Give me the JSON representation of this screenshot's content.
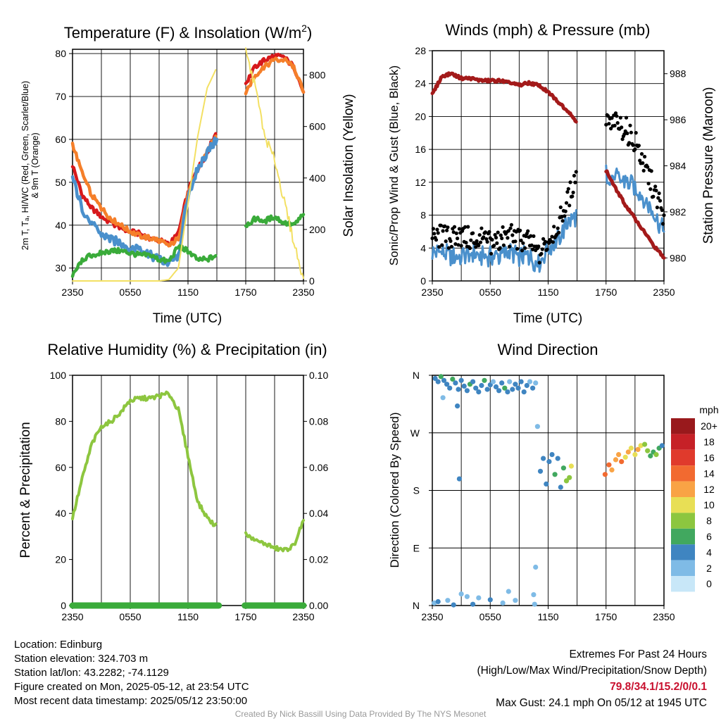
{
  "panels": {
    "temp": {
      "title": "Temperature (F) & Insolation (W/m",
      "title_sup": "2",
      "title_end": ")",
      "ylabel_lines": [
        "2m T, Tₐ, HI/WC (Red, Green, Scarlet/Blue)",
        "& 9m T (Orange)"
      ],
      "y2label": "Solar Insolation (Yellow)",
      "xlabel": "Time (UTC)"
    },
    "wind": {
      "title": "Winds (mph) & Pressure (mb)",
      "ylabel": "Sonic/Prop Wind & Gust (Blue, Black)",
      "y2label": "Station Pressure (Maroon)",
      "xlabel": "Time (UTC)"
    },
    "rh": {
      "title": "Relative Humidity (%) & Precipitation (in)",
      "ylabel": "Percent & Precipitation"
    },
    "dir": {
      "title": "Wind Direction",
      "ylabel": "Direction (Colored By Speed)",
      "legend_title": "mph"
    }
  },
  "footer": {
    "location": "Location: Edinburg",
    "elevation": "Station elevation: 324.703 m",
    "latlon": "Station lat/lon: 43.2282; -74.1129",
    "created": "Figure created on Mon, 2025-05-12, at 23:54 UTC",
    "recent": "Most recent data timestamp: 2025/05/12 23:50:00",
    "extremes_title": "Extremes For Past 24 Hours",
    "extremes_sub": "(High/Low/Max Wind/Precipitation/Snow Depth)",
    "extremes_values": "79.8/34.1/15.2/0/0.1",
    "max_gust": "Max Gust: 24.1 mph On 05/12 at 1945 UTC",
    "credit": "Created By Nick Bassill Using Data Provided By The NYS Mesonet"
  },
  "chart_data": [
    {
      "type": "line",
      "title": "Temperature (F) & Insolation (W/m2)",
      "xlabel": "Time (UTC)",
      "ylabel": "2m T, Td, HI/WC (Red, Green, Scarlet/Blue) & 9m T (Orange)",
      "y2label": "Solar Insolation (Yellow)",
      "x_ticks": [
        "2350",
        "0550",
        "1150",
        "1750",
        "2350"
      ],
      "xlim": [
        0,
        24
      ],
      "ylim": [
        27,
        81
      ],
      "y_ticks": [
        30,
        40,
        50,
        60,
        70,
        80
      ],
      "y2lim": [
        0,
        900
      ],
      "y2_ticks": [
        0,
        200,
        400,
        600,
        800
      ],
      "gap_hours": [
        15.2,
        17.9
      ],
      "series": [
        {
          "name": "2m T",
          "color": "#d7191c",
          "axis": "left",
          "x": [
            0,
            1,
            2,
            3,
            4,
            5,
            6,
            7,
            8,
            9,
            10,
            11,
            12,
            13,
            14,
            15,
            18,
            19,
            20,
            21,
            22,
            23,
            24
          ],
          "y": [
            54,
            47,
            44,
            42,
            40.5,
            39.5,
            38.5,
            38,
            37,
            36.5,
            35.5,
            38,
            48,
            53,
            57,
            62,
            73,
            77,
            78.5,
            79.5,
            79,
            77,
            71
          ]
        },
        {
          "name": "9m T",
          "color": "#f57f2a",
          "axis": "left",
          "x": [
            0,
            1,
            2,
            3,
            4,
            5,
            6,
            7,
            8,
            9,
            10,
            11,
            12,
            13,
            14,
            15,
            18,
            19,
            20,
            21,
            22,
            23,
            24
          ],
          "y": [
            59,
            52,
            47,
            44,
            41.5,
            40,
            38.5,
            37.5,
            37,
            36.5,
            35,
            37,
            47,
            53,
            57,
            61,
            71,
            75,
            77,
            78.5,
            78.5,
            77,
            71
          ]
        },
        {
          "name": "HI/WC",
          "color": "#4a90cc",
          "axis": "left",
          "x": [
            0,
            1,
            2,
            3,
            4,
            5,
            6,
            7,
            8,
            9,
            10,
            11,
            12,
            13,
            14,
            15
          ],
          "y": [
            51,
            44,
            40,
            38,
            36.5,
            36,
            34.5,
            35,
            33,
            32,
            31,
            33,
            47,
            53,
            57,
            60
          ]
        },
        {
          "name": "Td",
          "color": "#3aab3a",
          "axis": "left",
          "x": [
            0,
            1,
            2,
            3,
            4,
            5,
            6,
            7,
            8,
            9,
            10,
            11,
            12,
            13,
            14,
            15,
            18,
            19,
            20,
            21,
            22,
            23,
            24
          ],
          "y": [
            28,
            32,
            33,
            33.5,
            34,
            34,
            33.5,
            33,
            33,
            32,
            31.5,
            35,
            34,
            32,
            32,
            33,
            40,
            41.5,
            41,
            42,
            40.5,
            40,
            42.5
          ]
        },
        {
          "name": "Solar Insolation",
          "color": "#f3e063",
          "axis": "right",
          "x": [
            0,
            1,
            2,
            3,
            4,
            5,
            6,
            7,
            8,
            9,
            10,
            11,
            12,
            13,
            14,
            15,
            18,
            19,
            20,
            21,
            22,
            23,
            24
          ],
          "y": [
            0,
            0,
            0,
            0,
            0,
            0,
            0,
            0,
            0,
            0,
            5,
            50,
            300,
            560,
            750,
            830,
            890,
            750,
            560,
            470,
            310,
            150,
            10
          ]
        }
      ]
    },
    {
      "type": "line",
      "title": "Winds (mph) & Pressure (mb)",
      "xlabel": "Time (UTC)",
      "ylabel": "Sonic/Prop Wind & Gust (Blue, Black)",
      "y2label": "Station Pressure (Maroon)",
      "x_ticks": [
        "2350",
        "0550",
        "1150",
        "1750",
        "2350"
      ],
      "xlim": [
        0,
        24
      ],
      "ylim": [
        0,
        28
      ],
      "y_ticks": [
        0,
        4,
        8,
        12,
        16,
        20,
        24,
        28
      ],
      "y2lim": [
        979,
        989
      ],
      "y2_ticks": [
        980,
        982,
        984,
        986,
        988
      ],
      "series": [
        {
          "name": "Wind",
          "color": "#4a90cc",
          "axis": "left",
          "x": [
            0,
            1,
            2,
            3,
            4,
            5,
            6,
            7,
            8,
            9,
            10,
            11,
            12,
            13,
            14,
            15,
            18,
            19,
            20,
            21,
            22,
            23,
            24
          ],
          "y": [
            3.5,
            3.5,
            3,
            3,
            3.5,
            3,
            3,
            3,
            3.5,
            3,
            3,
            2,
            4,
            5,
            7,
            8,
            13,
            12.5,
            12,
            11.5,
            10,
            8,
            6
          ]
        },
        {
          "name": "Gust",
          "color": "#000000",
          "axis": "left",
          "style": "points",
          "x": [
            0,
            1,
            2,
            3,
            4,
            5,
            6,
            7,
            8,
            9,
            10,
            11,
            12,
            13,
            14,
            15,
            18,
            19,
            20,
            21,
            22,
            23,
            24
          ],
          "y": [
            5,
            5.5,
            5,
            5.5,
            5,
            5,
            4.5,
            5,
            5.5,
            5,
            5,
            3,
            5,
            7,
            9.5,
            13.5,
            19,
            19,
            18.5,
            17,
            14,
            11,
            8
          ]
        },
        {
          "name": "Station Pressure",
          "color": "#a31a1a",
          "axis": "right",
          "x": [
            0,
            1,
            2,
            3,
            4,
            5,
            6,
            7,
            8,
            9,
            10,
            11,
            12,
            13,
            14,
            15,
            18,
            19,
            20,
            21,
            22,
            23,
            24
          ],
          "y": [
            987.1,
            987.9,
            988,
            987.8,
            987.8,
            987.7,
            987.7,
            987.7,
            987.6,
            987.5,
            987.6,
            987.5,
            987.2,
            986.8,
            986.4,
            985.9,
            983.8,
            983.0,
            982.3,
            981.7,
            981.1,
            980.5,
            980.0
          ]
        }
      ]
    },
    {
      "type": "line",
      "title": "Relative Humidity (%) & Precipitation (in)",
      "ylabel": "Percent & Precipitation",
      "x_ticks": [
        "2350",
        "0550",
        "1150",
        "1750",
        "2350"
      ],
      "xlim": [
        0,
        24
      ],
      "ylim": [
        0,
        100
      ],
      "y_ticks": [
        0,
        20,
        40,
        60,
        80,
        100
      ],
      "y2lim": [
        0,
        0.1
      ],
      "y2_ticks": [
        "0.00",
        "0.02",
        "0.04",
        "0.06",
        "0.08",
        "0.10"
      ],
      "series": [
        {
          "name": "Relative Humidity",
          "color": "#8dc63f",
          "axis": "left",
          "x": [
            0,
            1,
            2,
            3,
            4,
            5,
            6,
            7,
            8,
            9,
            10,
            11,
            12,
            13,
            14,
            15,
            18,
            19,
            20,
            21,
            22,
            23,
            24
          ],
          "y": [
            38,
            55,
            70,
            78,
            80,
            84,
            89,
            90,
            90,
            91,
            92,
            85,
            65,
            45,
            38,
            34,
            31,
            28,
            27,
            25,
            24,
            26,
            37
          ]
        },
        {
          "name": "Precipitation",
          "color": "#3aab3a",
          "axis": "right",
          "x": [
            0,
            15.2,
            17.9,
            24
          ],
          "y": [
            0,
            0,
            0,
            0
          ]
        }
      ]
    },
    {
      "type": "scatter",
      "title": "Wind Direction",
      "ylabel": "Direction (Colored By Speed)",
      "x_ticks": [
        "2350",
        "0550",
        "1150",
        "1750",
        "2350"
      ],
      "xlim": [
        0,
        24
      ],
      "y_ticks": [
        "N",
        "E",
        "S",
        "W",
        "N"
      ],
      "ylim": [
        0,
        360
      ],
      "colorbar": {
        "title": "mph",
        "labels": [
          "20+",
          "18",
          "16",
          "14",
          "12",
          "10",
          "8",
          "6",
          "4",
          "2",
          "0"
        ],
        "colors": [
          "#99191c",
          "#c62127",
          "#e03a2c",
          "#f26a30",
          "#f9a345",
          "#e8df55",
          "#8cc63f",
          "#41a85f",
          "#3f85c1",
          "#7fbbe6",
          "#c8e7f8"
        ]
      },
      "points": [
        [
          0.3,
          355,
          3
        ],
        [
          0.6,
          350,
          4
        ],
        [
          0.9,
          358,
          5
        ],
        [
          1.2,
          352,
          3
        ],
        [
          1.5,
          346,
          4
        ],
        [
          1.8,
          340,
          3
        ],
        [
          2.1,
          354,
          5
        ],
        [
          2.4,
          348,
          4
        ],
        [
          2.7,
          338,
          3
        ],
        [
          3.0,
          352,
          4
        ],
        [
          3.3,
          343,
          3
        ],
        [
          3.6,
          336,
          4
        ],
        [
          3.9,
          346,
          5
        ],
        [
          4.2,
          350,
          3
        ],
        [
          4.5,
          340,
          4
        ],
        [
          4.8,
          334,
          3
        ],
        [
          5.1,
          344,
          4
        ],
        [
          5.4,
          352,
          5
        ],
        [
          5.7,
          338,
          3
        ],
        [
          6.0,
          345,
          4
        ],
        [
          6.3,
          350,
          2
        ],
        [
          6.6,
          342,
          4
        ],
        [
          6.9,
          336,
          3
        ],
        [
          7.2,
          348,
          4
        ],
        [
          7.5,
          340,
          5
        ],
        [
          7.8,
          334,
          3
        ],
        [
          8.0,
          350,
          2
        ],
        [
          8.3,
          338,
          4
        ],
        [
          8.6,
          346,
          3
        ],
        [
          8.9,
          340,
          4
        ],
        [
          9.2,
          350,
          3
        ],
        [
          9.5,
          334,
          4
        ],
        [
          9.8,
          344,
          3
        ],
        [
          10.1,
          350,
          2
        ],
        [
          10.4,
          340,
          3
        ],
        [
          10.7,
          348,
          1
        ],
        [
          1.1,
          325,
          2
        ],
        [
          2.6,
          312,
          4
        ],
        [
          2.8,
          198,
          4
        ],
        [
          0.2,
          4,
          2
        ],
        [
          0.6,
          6,
          3
        ],
        [
          1.6,
          8,
          2
        ],
        [
          2.2,
          1,
          3
        ],
        [
          3.0,
          18,
          2
        ],
        [
          3.6,
          14,
          1
        ],
        [
          4.2,
          2,
          3
        ],
        [
          4.8,
          12,
          2
        ],
        [
          6.0,
          9,
          3
        ],
        [
          7.3,
          4,
          2
        ],
        [
          7.9,
          22,
          1
        ],
        [
          8.6,
          8,
          2
        ],
        [
          10.5,
          17,
          1
        ],
        [
          10.6,
          2,
          1
        ],
        [
          10.7,
          60,
          1
        ],
        [
          10.9,
          280,
          1
        ],
        [
          11.2,
          210,
          3
        ],
        [
          11.5,
          230,
          4
        ],
        [
          11.8,
          190,
          3
        ],
        [
          12.1,
          225,
          4
        ],
        [
          12.4,
          236,
          3
        ],
        [
          12.7,
          205,
          5
        ],
        [
          13.0,
          230,
          4
        ],
        [
          13.3,
          185,
          3
        ],
        [
          13.6,
          215,
          6
        ],
        [
          13.9,
          195,
          8
        ],
        [
          14.2,
          200,
          7
        ],
        [
          14.4,
          218,
          10
        ],
        [
          17.9,
          205,
          14
        ],
        [
          18.3,
          220,
          13
        ],
        [
          18.6,
          212,
          12
        ],
        [
          19.0,
          228,
          12
        ],
        [
          19.3,
          236,
          11
        ],
        [
          19.6,
          225,
          13
        ],
        [
          20.0,
          232,
          10
        ],
        [
          20.3,
          240,
          12
        ],
        [
          20.6,
          246,
          10
        ],
        [
          21.0,
          236,
          9
        ],
        [
          21.3,
          244,
          11
        ],
        [
          21.6,
          250,
          9
        ],
        [
          22.0,
          252,
          8
        ],
        [
          22.3,
          242,
          7
        ],
        [
          22.6,
          234,
          6
        ],
        [
          22.9,
          240,
          5
        ],
        [
          23.2,
          236,
          7
        ],
        [
          23.5,
          246,
          5
        ],
        [
          23.8,
          250,
          4
        ]
      ]
    }
  ]
}
